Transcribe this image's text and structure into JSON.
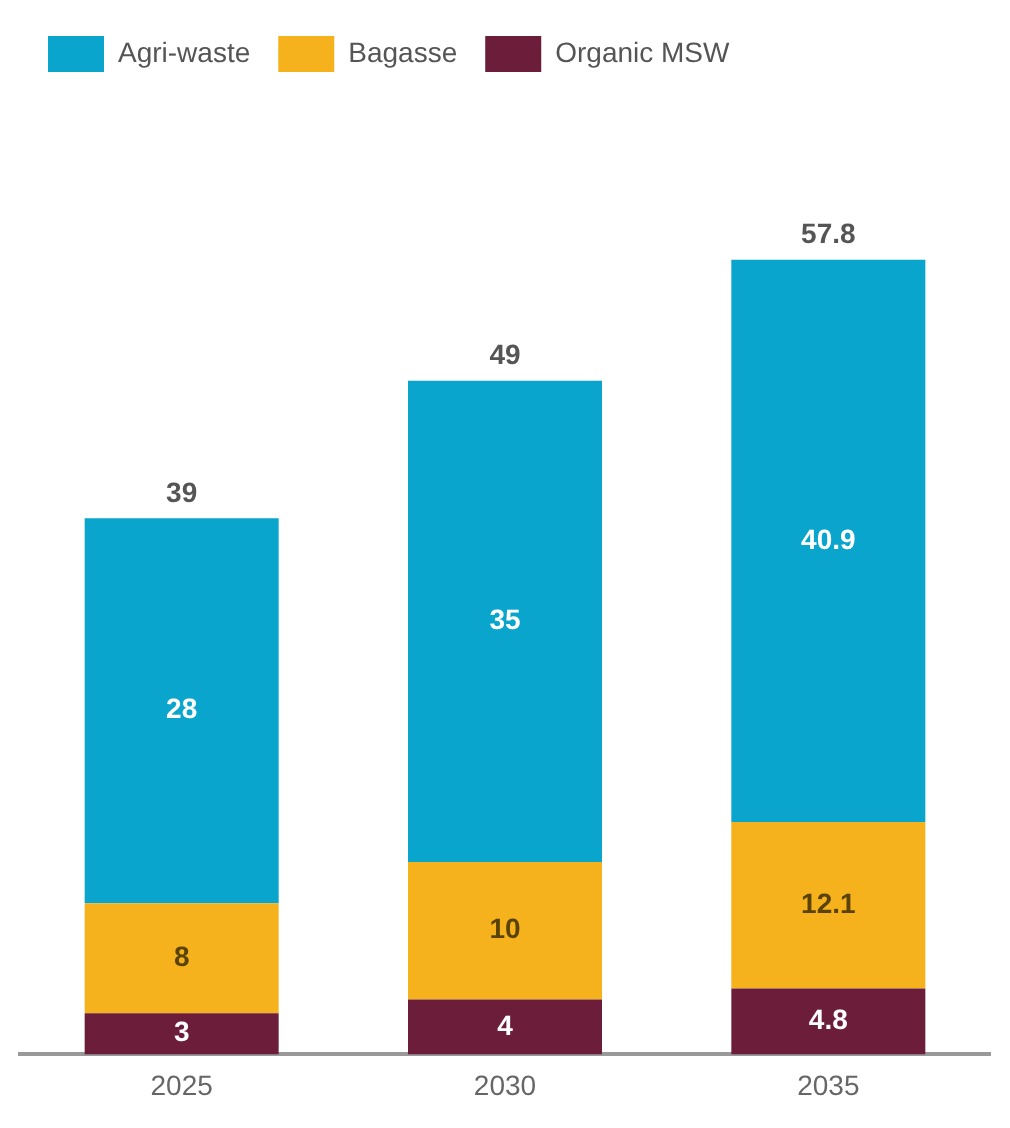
{
  "chart_data": {
    "type": "bar",
    "stacked": true,
    "categories": [
      "2025",
      "2030",
      "2035"
    ],
    "series": [
      {
        "name": "Organic MSW",
        "color": "#6b1d3a",
        "values": [
          3,
          4,
          4.8
        ]
      },
      {
        "name": "Bagasse",
        "color": "#f5b21c",
        "values": [
          8,
          10,
          12.1
        ]
      },
      {
        "name": "Agri-waste",
        "color": "#0aa5cc",
        "values": [
          28,
          35,
          40.9
        ]
      }
    ],
    "data_labels": true,
    "totals": [
      "39",
      "49",
      "57.8"
    ],
    "legend": "top left",
    "grid": false,
    "tick_labels": "x"
  }
}
